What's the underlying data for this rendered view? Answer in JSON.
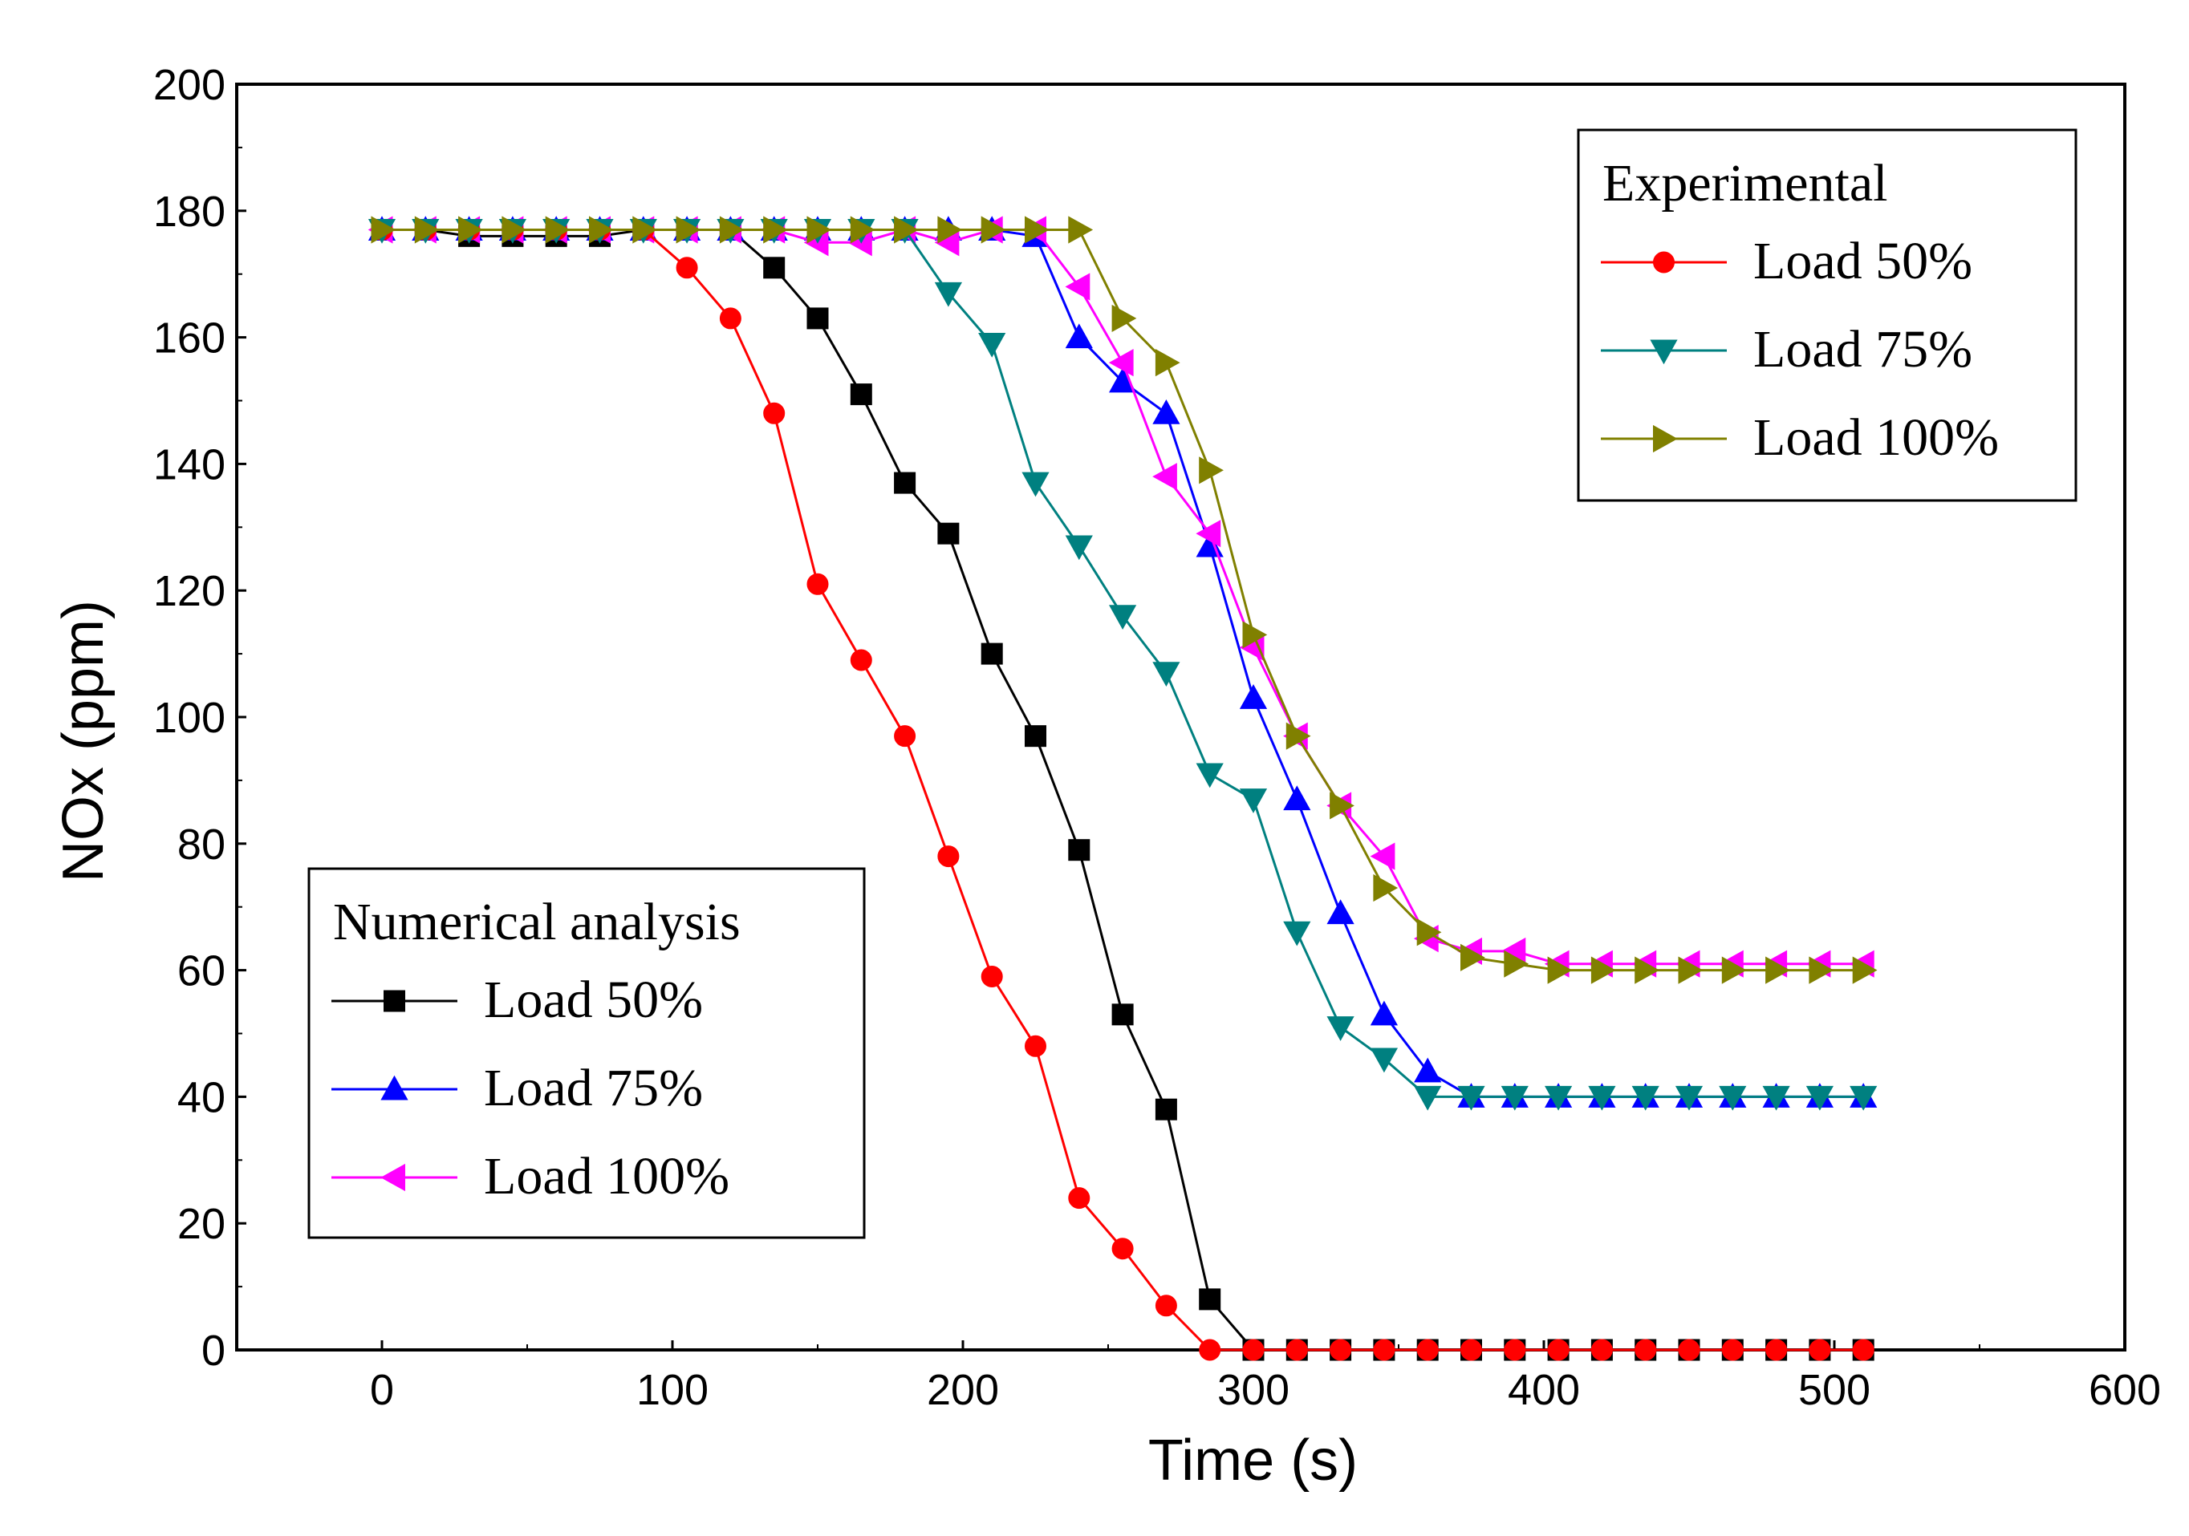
{
  "chart_data": {
    "type": "line",
    "xlabel": "Time (s)",
    "ylabel": "NOx (ppm)",
    "xlim": [
      -50,
      600
    ],
    "ylim": [
      0,
      200
    ],
    "xticks": [
      "0",
      "100",
      "200",
      "300",
      "400",
      "500",
      "600"
    ],
    "yticks": [
      "0",
      "20",
      "40",
      "60",
      "80",
      "100",
      "120",
      "140",
      "160",
      "180",
      "200"
    ],
    "grid": false,
    "legends": [
      {
        "title": "Experimental",
        "placement": "top-right",
        "entries": [
          "Load 50%",
          "Load 75%",
          "Load 100%"
        ]
      },
      {
        "title": "Numerical analysis",
        "placement": "bottom-left",
        "entries": [
          "Load 50%",
          "Load 75%",
          "Load 100%"
        ]
      }
    ],
    "x": [
      0,
      15,
      30,
      45,
      60,
      75,
      90,
      105,
      120,
      135,
      150,
      165,
      180,
      195,
      210,
      225,
      240,
      255,
      270,
      285,
      300,
      315,
      330,
      345,
      360,
      375,
      390,
      405,
      420,
      435,
      450,
      465,
      480,
      495,
      510
    ],
    "series": [
      {
        "name": "Load 50%",
        "group": "Numerical analysis",
        "color": "#000000",
        "marker": "square",
        "values": [
          177,
          177,
          176,
          176,
          176,
          176,
          177,
          177,
          177,
          171,
          163,
          151,
          137,
          129,
          110,
          97,
          79,
          53,
          38,
          8,
          0,
          0,
          0,
          0,
          0,
          0,
          0,
          0,
          0,
          0,
          0,
          0,
          0,
          0,
          0
        ]
      },
      {
        "name": "Load 75%",
        "group": "Numerical analysis",
        "color": "#0000ff",
        "marker": "triangle-up",
        "values": [
          177,
          177,
          177,
          177,
          177,
          177,
          177,
          177,
          177,
          177,
          177,
          177,
          177,
          177,
          177,
          176,
          160,
          153,
          148,
          127,
          103,
          87,
          69,
          53,
          44,
          40,
          40,
          40,
          40,
          40,
          40,
          40,
          40,
          40,
          40
        ]
      },
      {
        "name": "Load 100%",
        "group": "Numerical analysis",
        "color": "#ff00ff",
        "marker": "triangle-left",
        "values": [
          177,
          177,
          177,
          177,
          177,
          177,
          177,
          177,
          177,
          177,
          175,
          175,
          177,
          175,
          177,
          177,
          168,
          156,
          138,
          129,
          111,
          97,
          86,
          78,
          65,
          63,
          63,
          61,
          61,
          61,
          61,
          61,
          61,
          61,
          61
        ]
      },
      {
        "name": "Load 50%",
        "group": "Experimental",
        "color": "#ff0000",
        "marker": "circle",
        "values": [
          177,
          177,
          177,
          177,
          177,
          177,
          177,
          171,
          163,
          148,
          121,
          109,
          97,
          78,
          59,
          48,
          24,
          16,
          7,
          0,
          0,
          0,
          0,
          0,
          0,
          0,
          0,
          0,
          0,
          0,
          0,
          0,
          0,
          0,
          0
        ]
      },
      {
        "name": "Load 75%",
        "group": "Experimental",
        "color": "#008080",
        "marker": "triangle-down",
        "values": [
          177,
          177,
          177,
          177,
          177,
          177,
          177,
          177,
          177,
          177,
          177,
          177,
          177,
          167,
          159,
          137,
          127,
          116,
          107,
          91,
          87,
          66,
          51,
          46,
          40,
          40,
          40,
          40,
          40,
          40,
          40,
          40,
          40,
          40,
          40
        ]
      },
      {
        "name": "Load 100%",
        "group": "Experimental",
        "color": "#808000",
        "marker": "triangle-right",
        "values": [
          177,
          177,
          177,
          177,
          177,
          177,
          177,
          177,
          177,
          177,
          177,
          177,
          177,
          177,
          177,
          177,
          177,
          163,
          156,
          139,
          113,
          97,
          86,
          73,
          66,
          62,
          61,
          60,
          60,
          60,
          60,
          60,
          60,
          60,
          60
        ]
      }
    ]
  }
}
